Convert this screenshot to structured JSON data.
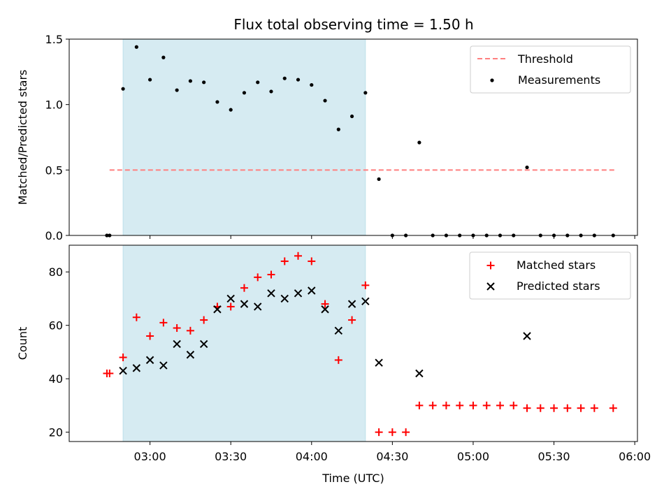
{
  "chart_data": {
    "type": "scatter",
    "title": "Flux total observing time = 1.50 h",
    "xlabel": "Time (UTC)",
    "x_ticks": [
      "03:00",
      "03:30",
      "04:00",
      "04:30",
      "05:00",
      "05:30",
      "06:00"
    ],
    "x_tick_minutes": [
      180,
      210,
      240,
      270,
      300,
      330,
      360
    ],
    "xlim_minutes": [
      150,
      361
    ],
    "highlight_span_minutes": [
      170,
      260
    ],
    "highlight_color": "#add8e6",
    "panels": [
      {
        "ylabel": "Matched/Predicted stars",
        "ylim": [
          0,
          1.5
        ],
        "y_ticks": [
          0.0,
          0.5,
          1.0,
          1.5
        ],
        "y_tick_labels": [
          "0.0",
          "0.5",
          "1.0",
          "1.5"
        ],
        "threshold": {
          "name": "Threshold",
          "y": 0.5,
          "x_range": [
            165,
            353
          ],
          "color": "#ff7f7f",
          "style": "dashed"
        },
        "series": [
          {
            "name": "Measurements",
            "marker": "dot",
            "color": "#000000",
            "x": [
              164,
              165,
              170,
              175,
              180,
              185,
              190,
              195,
              200,
              205,
              210,
              215,
              220,
              225,
              230,
              235,
              240,
              245,
              250,
              255,
              260,
              265,
              270,
              275,
              280,
              285,
              290,
              295,
              300,
              305,
              310,
              315,
              320,
              325,
              330,
              335,
              340,
              345,
              352
            ],
            "y": [
              0.0,
              0.0,
              1.12,
              1.44,
              1.19,
              1.36,
              1.11,
              1.18,
              1.17,
              1.02,
              0.96,
              1.09,
              1.17,
              1.1,
              1.2,
              1.19,
              1.15,
              1.03,
              0.81,
              0.91,
              1.09,
              0.43,
              0.0,
              0.0,
              0.71,
              0.0,
              0.0,
              0.0,
              0.0,
              0.0,
              0.0,
              0.0,
              0.52,
              0.0,
              0.0,
              0.0,
              0.0,
              0.0,
              0.0
            ]
          }
        ],
        "legend": [
          {
            "label": "Threshold",
            "symbol": "dashed-line",
            "color": "#ff7f7f"
          },
          {
            "label": "Measurements",
            "symbol": "dot",
            "color": "#000000"
          }
        ]
      },
      {
        "ylabel": "Count",
        "ylim": [
          16.5,
          90
        ],
        "y_ticks": [
          20,
          40,
          60,
          80
        ],
        "y_tick_labels": [
          "20",
          "40",
          "60",
          "80"
        ],
        "series": [
          {
            "name": "Matched stars",
            "marker": "plus",
            "color": "#ff0000",
            "x": [
              164,
              165,
              170,
              175,
              180,
              185,
              190,
              195,
              200,
              205,
              210,
              215,
              220,
              225,
              230,
              235,
              240,
              245,
              250,
              255,
              260,
              265,
              270,
              275,
              280,
              285,
              290,
              295,
              300,
              305,
              310,
              315,
              320,
              325,
              330,
              335,
              340,
              345,
              352
            ],
            "y": [
              42,
              42,
              48,
              63,
              56,
              61,
              59,
              58,
              62,
              67,
              67,
              74,
              78,
              79,
              84,
              86,
              84,
              68,
              47,
              62,
              75,
              20,
              20,
              20,
              30,
              30,
              30,
              30,
              30,
              30,
              30,
              30,
              29,
              29,
              29,
              29,
              29,
              29,
              29
            ]
          },
          {
            "name": "Predicted stars",
            "marker": "x",
            "color": "#000000",
            "x": [
              170,
              175,
              180,
              185,
              190,
              195,
              200,
              205,
              210,
              215,
              220,
              225,
              230,
              235,
              240,
              245,
              250,
              255,
              260,
              265,
              280,
              320
            ],
            "y": [
              43,
              44,
              47,
              45,
              53,
              49,
              53,
              66,
              70,
              68,
              67,
              72,
              70,
              72,
              73,
              66,
              58,
              68,
              69,
              46,
              42,
              56
            ]
          }
        ],
        "legend": [
          {
            "label": "Matched stars",
            "symbol": "plus",
            "color": "#ff0000"
          },
          {
            "label": "Predicted stars",
            "symbol": "x",
            "color": "#000000"
          }
        ]
      }
    ]
  }
}
